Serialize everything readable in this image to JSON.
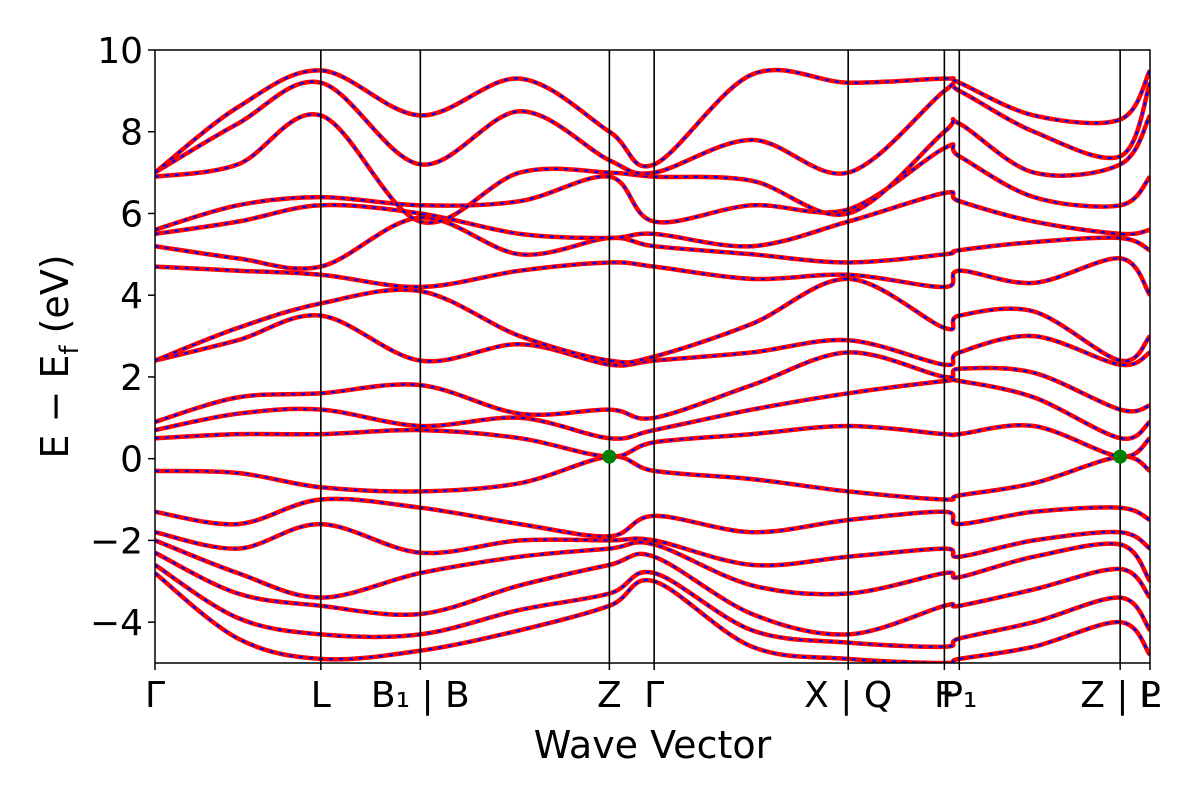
{
  "chart_data": {
    "type": "line",
    "title": "",
    "xlabel": "Wave Vector",
    "ylabel": "E − E",
    "ylabel_sub": "f",
    "ylabel_unit": " (eV)",
    "ylim": [
      -5,
      10
    ],
    "yticks": [
      "10",
      "8",
      "6",
      "4",
      "2",
      "0",
      "−2",
      "−4"
    ],
    "ytick_values": [
      10,
      8,
      6,
      4,
      2,
      0,
      -2,
      -4
    ],
    "xlim": [
      0,
      6.0
    ],
    "kpoints": [
      {
        "pos": 0.0,
        "label": "Γ"
      },
      {
        "pos": 1.0,
        "label": "L"
      },
      {
        "pos": 1.6,
        "label": "B₁ | B"
      },
      {
        "pos": 2.74,
        "label": "Z"
      },
      {
        "pos": 3.01,
        "label": "Γ"
      },
      {
        "pos": 4.18,
        "label": "X | Q"
      },
      {
        "pos": 4.76,
        "label": "F"
      },
      {
        "pos": 4.85,
        "label": "P₁"
      },
      {
        "pos": 5.82,
        "label": "Z | L"
      },
      {
        "pos": 6.0,
        "label": "P"
      }
    ],
    "markers": [
      {
        "x": 2.74,
        "y": 0.05,
        "color": "#008000"
      },
      {
        "x": 5.82,
        "y": 0.05,
        "color": "#008000"
      }
    ],
    "series_style": {
      "main_color": "#ff0000",
      "overlay_color": "#0000ff"
    },
    "series": [
      {
        "x": [
          0,
          0.5,
          1.0,
          1.6,
          2.2,
          2.74,
          3.01,
          3.6,
          4.18,
          4.76,
          4.85,
          5.3,
          5.82,
          6.0
        ],
        "y": [
          -0.3,
          -0.35,
          -0.7,
          -0.8,
          -0.6,
          0.05,
          -0.3,
          -0.5,
          -0.8,
          -1.0,
          -0.9,
          -0.6,
          0.05,
          -0.3
        ]
      },
      {
        "x": [
          0,
          0.5,
          1.0,
          1.6,
          2.2,
          2.74,
          3.01,
          3.6,
          4.18,
          4.76,
          4.85,
          5.3,
          5.82,
          6.0
        ],
        "y": [
          0.5,
          0.6,
          0.6,
          0.7,
          0.5,
          0.05,
          0.4,
          0.6,
          0.8,
          0.6,
          0.6,
          0.8,
          0.05,
          0.5
        ]
      },
      {
        "x": [
          0,
          0.5,
          1.0,
          1.6,
          2.2,
          2.74,
          3.01,
          3.6,
          4.18,
          4.76,
          4.85,
          5.3,
          5.82,
          6.0
        ],
        "y": [
          0.7,
          1.1,
          1.2,
          0.8,
          1.0,
          0.5,
          0.7,
          1.2,
          1.6,
          1.9,
          1.9,
          1.5,
          0.5,
          0.9
        ]
      },
      {
        "x": [
          0,
          0.5,
          1.0,
          1.6,
          2.2,
          2.74,
          3.01,
          3.6,
          4.18,
          4.76,
          4.85,
          5.3,
          5.82,
          6.0
        ],
        "y": [
          0.9,
          1.5,
          1.6,
          1.8,
          1.1,
          1.2,
          1.0,
          1.8,
          2.6,
          2.0,
          2.2,
          2.1,
          1.2,
          1.3
        ]
      },
      {
        "x": [
          0,
          0.5,
          1.0,
          1.6,
          2.2,
          2.74,
          3.01,
          3.6,
          4.18,
          4.76,
          4.85,
          5.3,
          5.82,
          6.0
        ],
        "y": [
          2.4,
          2.9,
          3.5,
          2.4,
          2.8,
          2.3,
          2.4,
          2.6,
          2.9,
          2.3,
          2.6,
          3.0,
          2.3,
          2.6
        ]
      },
      {
        "x": [
          0,
          0.5,
          1.0,
          1.6,
          2.2,
          2.74,
          3.01,
          3.6,
          4.18,
          4.76,
          4.85,
          5.3,
          5.82,
          6.0
        ],
        "y": [
          2.4,
          3.2,
          3.8,
          4.1,
          3.0,
          2.4,
          2.5,
          3.3,
          4.4,
          3.2,
          3.5,
          3.6,
          2.4,
          3.0
        ]
      },
      {
        "x": [
          0,
          0.5,
          1.0,
          1.6,
          2.2,
          2.74,
          3.01,
          3.6,
          4.18,
          4.76,
          4.85,
          5.3,
          5.82,
          6.0
        ],
        "y": [
          4.7,
          4.6,
          4.5,
          4.2,
          4.6,
          4.8,
          4.7,
          4.4,
          4.5,
          4.2,
          4.6,
          4.3,
          4.9,
          4.0
        ]
      },
      {
        "x": [
          0,
          0.5,
          1.0,
          1.6,
          2.2,
          2.74,
          3.01,
          3.6,
          4.18,
          4.76,
          4.85,
          5.3,
          5.82,
          6.0
        ],
        "y": [
          5.2,
          4.9,
          4.7,
          5.9,
          5.0,
          5.4,
          5.2,
          5.0,
          4.8,
          5.0,
          5.1,
          5.3,
          5.4,
          5.1
        ]
      },
      {
        "x": [
          0,
          0.5,
          1.0,
          1.6,
          2.2,
          2.74,
          3.01,
          3.6,
          4.18,
          4.76,
          4.85,
          5.3,
          5.82,
          6.0
        ],
        "y": [
          5.5,
          5.8,
          6.2,
          6.0,
          5.5,
          5.4,
          5.5,
          5.2,
          5.8,
          6.5,
          6.3,
          5.8,
          5.5,
          5.6
        ]
      },
      {
        "x": [
          0,
          0.5,
          1.0,
          1.6,
          2.2,
          2.74,
          3.01,
          3.6,
          4.18,
          4.76,
          4.85,
          5.3,
          5.82,
          6.0
        ],
        "y": [
          5.6,
          6.2,
          6.4,
          6.2,
          6.3,
          6.9,
          5.8,
          6.2,
          6.1,
          7.6,
          7.4,
          6.4,
          6.2,
          6.9
        ]
      },
      {
        "x": [
          0,
          0.5,
          1.0,
          1.6,
          2.2,
          2.74,
          3.01,
          3.6,
          4.18,
          4.76,
          4.85,
          5.3,
          5.82,
          6.0
        ],
        "y": [
          6.9,
          7.2,
          8.4,
          5.8,
          7.0,
          7.0,
          6.9,
          6.8,
          6.0,
          8.0,
          8.2,
          7.0,
          7.2,
          8.4
        ]
      },
      {
        "x": [
          0,
          0.5,
          1.0,
          1.6,
          2.2,
          2.74,
          3.01,
          3.6,
          4.18,
          4.76,
          4.85,
          5.3,
          5.82,
          6.0
        ],
        "y": [
          7.0,
          8.2,
          9.2,
          7.2,
          8.5,
          7.3,
          7.0,
          7.8,
          7.0,
          9.0,
          9.0,
          8.0,
          7.4,
          9.2
        ]
      },
      {
        "x": [
          0,
          0.5,
          1.0,
          1.6,
          2.2,
          2.74,
          3.01,
          3.6,
          4.18,
          4.76,
          4.85,
          5.3,
          5.82,
          6.0
        ],
        "y": [
          7.0,
          8.6,
          9.5,
          8.4,
          9.3,
          8.0,
          7.2,
          9.4,
          9.2,
          9.3,
          9.2,
          8.4,
          8.3,
          9.5
        ]
      },
      {
        "x": [
          0,
          0.5,
          1.0,
          1.6,
          2.2,
          2.74,
          3.01,
          3.6,
          4.18,
          4.76,
          4.85,
          5.3,
          5.82,
          6.0
        ],
        "y": [
          -1.3,
          -1.6,
          -1.0,
          -1.2,
          -1.6,
          -1.9,
          -1.4,
          -1.8,
          -1.5,
          -1.3,
          -1.6,
          -1.3,
          -1.2,
          -1.5
        ]
      },
      {
        "x": [
          0,
          0.5,
          1.0,
          1.6,
          2.2,
          2.74,
          3.01,
          3.6,
          4.18,
          4.76,
          4.85,
          5.3,
          5.82,
          6.0
        ],
        "y": [
          -1.8,
          -2.2,
          -1.6,
          -2.3,
          -2.0,
          -2.0,
          -2.0,
          -2.6,
          -2.4,
          -2.2,
          -2.4,
          -2.0,
          -1.8,
          -2.2
        ]
      },
      {
        "x": [
          0,
          0.5,
          1.0,
          1.6,
          2.2,
          2.74,
          3.01,
          3.6,
          4.18,
          4.76,
          4.85,
          5.3,
          5.82,
          6.0
        ],
        "y": [
          -2.0,
          -2.8,
          -3.4,
          -2.8,
          -2.4,
          -2.2,
          -2.1,
          -3.1,
          -3.3,
          -2.8,
          -2.9,
          -2.4,
          -2.1,
          -3.0
        ]
      },
      {
        "x": [
          0,
          0.5,
          1.0,
          1.6,
          2.2,
          2.74,
          3.01,
          3.6,
          4.18,
          4.76,
          4.85,
          5.3,
          5.82,
          6.0
        ],
        "y": [
          -2.3,
          -3.3,
          -3.6,
          -3.8,
          -3.1,
          -2.6,
          -2.4,
          -3.8,
          -4.3,
          -3.6,
          -3.6,
          -3.2,
          -2.7,
          -3.4
        ]
      },
      {
        "x": [
          0,
          0.5,
          1.0,
          1.6,
          2.2,
          2.74,
          3.01,
          3.6,
          4.18,
          4.76,
          4.85,
          5.3,
          5.82,
          6.0
        ],
        "y": [
          -2.6,
          -3.9,
          -4.3,
          -4.3,
          -3.7,
          -3.3,
          -2.8,
          -4.2,
          -4.5,
          -4.6,
          -4.4,
          -4.0,
          -3.4,
          -4.2
        ]
      },
      {
        "x": [
          0,
          0.5,
          1.0,
          1.6,
          2.2,
          2.74,
          3.01,
          3.6,
          4.18,
          4.76,
          4.85,
          5.3,
          5.82,
          6.0
        ],
        "y": [
          -2.8,
          -4.4,
          -4.9,
          -4.7,
          -4.2,
          -3.6,
          -3.0,
          -4.6,
          -4.9,
          -5.0,
          -4.9,
          -4.6,
          -4.0,
          -4.8
        ]
      }
    ]
  }
}
